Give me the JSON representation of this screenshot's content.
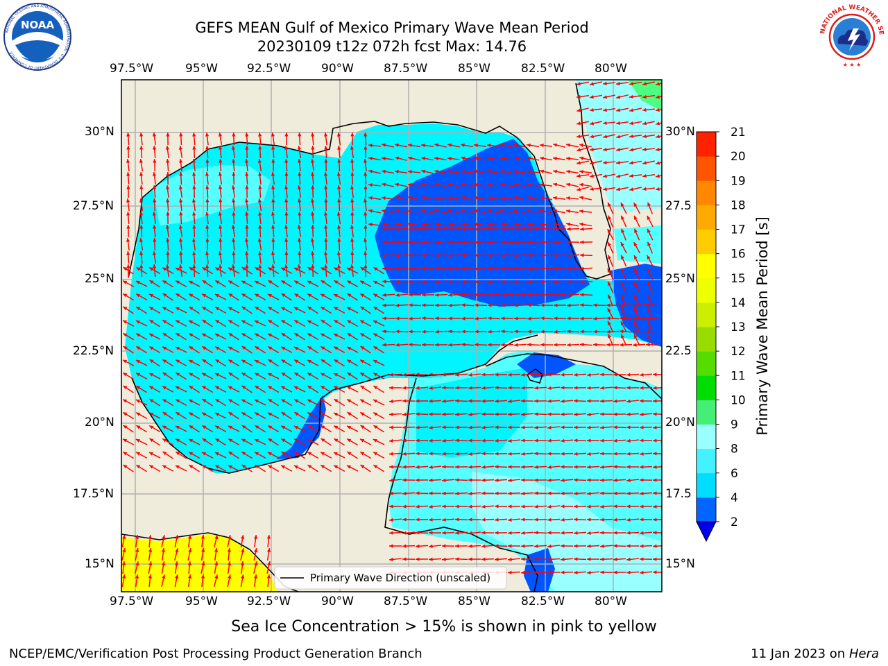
{
  "header": {
    "title_line1": "GEFS MEAN Gulf of Mexico Primary Wave Mean Period",
    "title_line2": "20230109 t12z 072h fcst   Max: 14.76",
    "noaa_logo_text": "NOAA",
    "noaa_ring_text": "NATIONAL OCEANIC AND ATMOSPHERIC ADMINISTRATION · U.S. DEPARTMENT OF COMMERCE",
    "nws_ring_text": "NATIONAL WEATHER SERVICE"
  },
  "map": {
    "lon_labels": [
      "97.5°W",
      "95°W",
      "92.5°W",
      "90°W",
      "87.5°W",
      "85°W",
      "82.5°W",
      "80°W"
    ],
    "lat_labels_left": [
      "30°N",
      "27.5°N",
      "25°N",
      "22.5°N",
      "20°N",
      "17.5°N",
      "15°N"
    ],
    "lat_labels_right": [
      "30°N",
      "27.5",
      "25°N",
      "22.5",
      "20°N",
      "17.5",
      "15°N"
    ],
    "legend_label": "Primary Wave Direction (unscaled)",
    "colors": {
      "land": "#efecdc",
      "coast": "#000000",
      "grid": "#b0b0b0",
      "arrow": "#ff0000",
      "period_2_4": "#0055ff",
      "period_4_6": "#00f5ff",
      "period_6_8": "#55ffff",
      "period_8_9": "#99ffff",
      "period_9_10": "#4dff80",
      "period_15_16": "#ffff00"
    }
  },
  "colorbar": {
    "label": "Primary Wave Mean Period [s]",
    "ticks": [
      "2",
      "4",
      "6",
      "8",
      "9",
      "10",
      "11",
      "12",
      "13",
      "14",
      "15",
      "16",
      "17",
      "18",
      "19",
      "20",
      "21"
    ],
    "colors": [
      "#0066ff",
      "#00ddff",
      "#44f2ff",
      "#99ffff",
      "#44ee77",
      "#00dd00",
      "#55dd00",
      "#99dd00",
      "#ccee00",
      "#eeff00",
      "#ffff00",
      "#ffcc00",
      "#ffaa00",
      "#ff8800",
      "#ff5500",
      "#ff2200"
    ],
    "extend_color": "#0000ee"
  },
  "footer": {
    "note": "Sea Ice Concentration > 15% is shown in pink to yellow",
    "credit": "NCEP/EMC/Verification Post Processing Product Generation Branch",
    "date": "11 Jan 2023 on",
    "host": "Hera"
  }
}
